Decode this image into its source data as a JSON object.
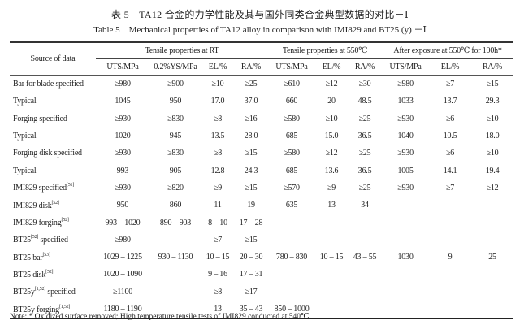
{
  "caption_cn": "表 5　TA12 合金的力学性能及其与国外同类合金典型数据的对比－Ⅰ",
  "caption_en": "Table 5　Mechanical properties of TA12 alloy in comparison with IMI829 and BT25 (y) －Ⅰ",
  "header": {
    "source": "Source of data",
    "groups": [
      "Tensile properties at RT",
      "Tensile properties at 550℃",
      "After exposure at 550℃ for 100h*"
    ],
    "columns": [
      "UTS/MPa",
      "0.2%YS/MPa",
      "EL/%",
      "RA/%",
      "UTS/MPa",
      "EL/%",
      "RA/%",
      "UTS/MPa",
      "EL/%",
      "RA/%"
    ]
  },
  "rows": [
    {
      "source": "Bar for blade specified",
      "ref": "",
      "suffix": "",
      "values": [
        "≥980",
        "≥900",
        "≥10",
        "≥25",
        "≥610",
        "≥12",
        "≥30",
        "≥980",
        "≥7",
        "≥15"
      ]
    },
    {
      "source": "Typical",
      "ref": "",
      "suffix": "",
      "values": [
        "1045",
        "950",
        "17.0",
        "37.0",
        "660",
        "20",
        "48.5",
        "1033",
        "13.7",
        "29.3"
      ]
    },
    {
      "source": "Forging specified",
      "ref": "",
      "suffix": "",
      "values": [
        "≥930",
        "≥830",
        "≥8",
        "≥16",
        "≥580",
        "≥10",
        "≥25",
        "≥930",
        "≥6",
        "≥10"
      ]
    },
    {
      "source": "Typical",
      "ref": "",
      "suffix": "",
      "values": [
        "1020",
        "945",
        "13.5",
        "28.0",
        "685",
        "15.0",
        "36.5",
        "1040",
        "10.5",
        "18.0"
      ]
    },
    {
      "source": "Forging disk specified",
      "ref": "",
      "suffix": "",
      "values": [
        "≥930",
        "≥830",
        "≥8",
        "≥15",
        "≥580",
        "≥12",
        "≥25",
        "≥930",
        "≥6",
        "≥10"
      ]
    },
    {
      "source": "Typical",
      "ref": "",
      "suffix": "",
      "values": [
        "993",
        "905",
        "12.8",
        "24.3",
        "685",
        "13.6",
        "36.5",
        "1005",
        "14.1",
        "19.4"
      ]
    },
    {
      "source": "IMI829 specified",
      "ref": "[51]",
      "suffix": "",
      "values": [
        "≥930",
        "≥820",
        "≥9",
        "≥15",
        "≥570",
        "≥9",
        "≥25",
        "≥930",
        "≥7",
        "≥12"
      ]
    },
    {
      "source": "IMI829 disk",
      "ref": "[52]",
      "suffix": "",
      "values": [
        "950",
        "860",
        "11",
        "19",
        "635",
        "13",
        "34",
        "",
        "",
        ""
      ]
    },
    {
      "source": "IMI829 forging",
      "ref": "[52]",
      "suffix": "",
      "values": [
        "993 – 1020",
        "890 – 903",
        "8 – 10",
        "17 – 28",
        "",
        "",
        "",
        "",
        "",
        ""
      ]
    },
    {
      "source": "BT25",
      "ref": "[52]",
      "suffix": " specified",
      "values": [
        "≥980",
        "",
        "≥7",
        "≥15",
        "",
        "",
        "",
        "",
        "",
        ""
      ]
    },
    {
      "source": "BT25 bar",
      "ref": "[53]",
      "suffix": "",
      "values": [
        "1029 – 1225",
        "930 – 1130",
        "10 – 15",
        "20 – 30",
        "780 – 830",
        "10 – 15",
        "43 – 55",
        "1030",
        "9",
        "25"
      ]
    },
    {
      "source": "BT25 disk",
      "ref": "[52]",
      "suffix": "",
      "values": [
        "1020 – 1090",
        "",
        "9 – 16",
        "17 – 31",
        "",
        "",
        "",
        "",
        "",
        ""
      ]
    },
    {
      "source": "BT25y",
      "ref": "[1,52]",
      "suffix": " specified",
      "values": [
        "≥1100",
        "",
        "≥8",
        "≥17",
        "",
        "",
        "",
        "",
        "",
        ""
      ]
    },
    {
      "source": "BT25y forging",
      "ref": "[1,52]",
      "suffix": "",
      "values": [
        "1180 – 1190",
        "",
        "13",
        "35 – 43",
        "850 – 1000",
        "",
        "",
        "",
        "",
        ""
      ]
    }
  ],
  "note": "Note: * Oxidized surface removed; High temperature tensile tests of IMI829 conducted at 540℃."
}
